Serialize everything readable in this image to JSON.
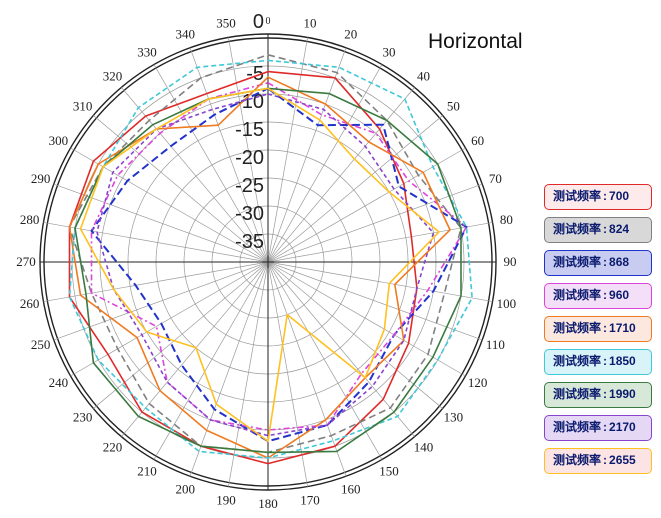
{
  "chart_data": {
    "type": "polar-line",
    "title": "Horizontal",
    "angle_ticks": [
      "0",
      "10",
      "20",
      "30",
      "40",
      "50",
      "60",
      "70",
      "80",
      "90",
      "100",
      "110",
      "120",
      "130",
      "140",
      "150",
      "160",
      "170",
      "180",
      "190",
      "200",
      "210",
      "220",
      "230",
      "240",
      "250",
      "260",
      "270",
      "280",
      "290",
      "300",
      "310",
      "320",
      "330",
      "340",
      "350"
    ],
    "radial_ticks": [
      "0",
      "-5",
      "-10",
      "-15",
      "-20",
      "-25",
      "-30",
      "-35"
    ],
    "radial_range": [
      -40,
      0
    ],
    "angles": [
      0,
      20,
      40,
      60,
      80,
      100,
      120,
      140,
      160,
      180,
      200,
      220,
      240,
      260,
      280,
      300,
      320,
      340
    ],
    "series": [
      {
        "name": "测试频率",
        "value": "700",
        "color": "#e02a2a",
        "values": [
          -6,
          -5,
          -9,
          -12,
          -14,
          -13,
          -11,
          -8,
          -5,
          -4,
          -5,
          -5,
          -7,
          -4,
          -4,
          -4,
          -6,
          -8
        ]
      },
      {
        "name": "测试频率",
        "value": "824",
        "color": "#808080",
        "values": [
          -3,
          -4,
          -7,
          -9,
          -5,
          -8,
          -7,
          -6,
          -7,
          -6,
          -5,
          -7,
          -9,
          -8,
          -4,
          -6,
          -7,
          -5
        ]
      },
      {
        "name": "测试频率",
        "value": "868",
        "color": "#2233cc",
        "values": [
          -9,
          -14,
          -8,
          -13,
          -4,
          -10,
          -14,
          -12,
          -9,
          -8,
          -12,
          -16,
          -18,
          -16,
          -8,
          -11,
          -13,
          -12
        ]
      },
      {
        "name": "测试频率",
        "value": "960",
        "color": "#dd44dd",
        "values": [
          -8,
          -12,
          -10,
          -11,
          -4,
          -11,
          -14,
          -14,
          -9,
          -10,
          -10,
          -12,
          -17,
          -8,
          -8,
          -9,
          -10,
          -9
        ]
      },
      {
        "name": "测试频率",
        "value": "1710",
        "color": "#f07a20",
        "values": [
          -7,
          -10,
          -12,
          -8,
          -7,
          -17,
          -12,
          -13,
          -10,
          -5,
          -8,
          -10,
          -13,
          -6,
          -4,
          -5,
          -9,
          -14
        ]
      },
      {
        "name": "测试频率",
        "value": "1850",
        "color": "#40c8d8",
        "values": [
          -4,
          -3,
          -2,
          -6,
          -4,
          -3,
          -5,
          -4,
          -6,
          -5,
          -4,
          -6,
          -5,
          -4,
          -5,
          -6,
          -4,
          -3
        ]
      },
      {
        "name": "测试频率",
        "value": "1990",
        "color": "#3a7a40",
        "values": [
          -9,
          -8,
          -7,
          -5,
          -5,
          -5,
          -6,
          -5,
          -4,
          -6,
          -5,
          -4,
          -4,
          -7,
          -5,
          -6,
          -8,
          -9
        ]
      },
      {
        "name": "测试频率",
        "value": "2170",
        "color": "#8844cc",
        "values": [
          -10,
          -11,
          -13,
          -14,
          -10,
          -13,
          -12,
          -11,
          -9,
          -9,
          -10,
          -12,
          -14,
          -12,
          -9,
          -8,
          -9,
          -11
        ]
      },
      {
        "name": "测试频率",
        "value": "2655",
        "color": "#ffc020",
        "values": [
          -9,
          -13,
          -16,
          -15,
          -9,
          -18,
          -16,
          -13,
          -30,
          -8,
          -13,
          -20,
          -15,
          -12,
          -6,
          -6,
          -9,
          -9
        ]
      }
    ]
  }
}
